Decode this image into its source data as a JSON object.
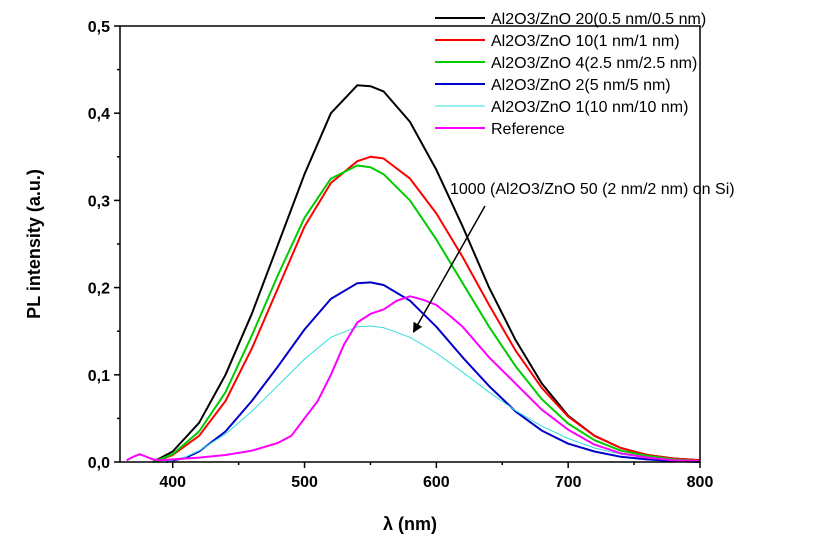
{
  "chart_data": {
    "type": "line",
    "xlabel": "λ (nm)",
    "ylabel": "PL intensity (a.u.)",
    "xlim": [
      360,
      800
    ],
    "ylim": [
      0,
      0.5
    ],
    "x_ticks": [
      400,
      500,
      600,
      700,
      800
    ],
    "x_tick_labels": [
      "400",
      "500",
      "600",
      "700",
      "800"
    ],
    "y_ticks": [
      0,
      0.1,
      0.2,
      0.3,
      0.4,
      0.5
    ],
    "y_tick_labels": [
      "0,0",
      "0,1",
      "0,2",
      "0,3",
      "0,4",
      "0,5"
    ],
    "grid": false,
    "legend_position": "top-right",
    "annotation": {
      "text": "1000 (Al2O3/ZnO 50 (2 nm/2 nm) on Si)",
      "points_to_x": 583,
      "points_to_y": 0.15
    },
    "series": [
      {
        "name": "Al2O3/ZnO 20(0.5 nm/0.5 nm)",
        "color": "#000000",
        "x": [
          385,
          400,
          420,
          440,
          460,
          480,
          500,
          520,
          540,
          550,
          560,
          580,
          600,
          620,
          640,
          660,
          680,
          700,
          720,
          740,
          760,
          780,
          800
        ],
        "y": [
          0.0,
          0.012,
          0.045,
          0.1,
          0.17,
          0.25,
          0.33,
          0.4,
          0.432,
          0.431,
          0.425,
          0.39,
          0.335,
          0.27,
          0.2,
          0.14,
          0.09,
          0.053,
          0.03,
          0.016,
          0.008,
          0.004,
          0.002
        ]
      },
      {
        "name": "Al2O3/ZnO 10(1 nm/1 nm)",
        "color": "#ff0000",
        "x": [
          385,
          400,
          420,
          440,
          460,
          480,
          500,
          520,
          540,
          550,
          560,
          580,
          600,
          620,
          640,
          660,
          680,
          700,
          720,
          740,
          760,
          780,
          800
        ],
        "y": [
          0.0,
          0.008,
          0.03,
          0.07,
          0.13,
          0.2,
          0.27,
          0.32,
          0.345,
          0.35,
          0.348,
          0.325,
          0.285,
          0.235,
          0.18,
          0.128,
          0.085,
          0.052,
          0.03,
          0.016,
          0.008,
          0.004,
          0.002
        ]
      },
      {
        "name": "Al2O3/ZnO 4(2.5 nm/2.5 nm)",
        "color": "#00cc00",
        "x": [
          385,
          400,
          420,
          440,
          460,
          480,
          500,
          520,
          540,
          550,
          560,
          580,
          600,
          620,
          640,
          660,
          680,
          700,
          720,
          740,
          760,
          780,
          800
        ],
        "y": [
          0.0,
          0.009,
          0.035,
          0.08,
          0.145,
          0.215,
          0.28,
          0.325,
          0.34,
          0.338,
          0.33,
          0.3,
          0.255,
          0.205,
          0.155,
          0.11,
          0.072,
          0.044,
          0.025,
          0.013,
          0.007,
          0.003,
          0.001
        ]
      },
      {
        "name": "Al2O3/ZnO 2(5 nm/5 nm)",
        "color": "#0000cc",
        "x": [
          395,
          410,
          420,
          440,
          460,
          480,
          500,
          520,
          540,
          550,
          560,
          580,
          600,
          620,
          640,
          660,
          680,
          700,
          720,
          740,
          760,
          780,
          800
        ],
        "y": [
          0.0,
          0.005,
          0.012,
          0.035,
          0.07,
          0.11,
          0.152,
          0.187,
          0.205,
          0.206,
          0.203,
          0.185,
          0.155,
          0.12,
          0.087,
          0.058,
          0.036,
          0.021,
          0.012,
          0.006,
          0.003,
          0.001,
          0.0
        ]
      },
      {
        "name": "Al2O3/ZnO 1(10 nm/10 nm)",
        "color": "#33dddd",
        "x": [
          395,
          410,
          420,
          440,
          460,
          480,
          500,
          520,
          540,
          550,
          560,
          580,
          600,
          620,
          640,
          660,
          680,
          700,
          720,
          740,
          760,
          780,
          800
        ],
        "y": [
          0.0,
          0.006,
          0.013,
          0.032,
          0.058,
          0.088,
          0.118,
          0.143,
          0.155,
          0.156,
          0.154,
          0.143,
          0.125,
          0.103,
          0.08,
          0.059,
          0.041,
          0.027,
          0.016,
          0.009,
          0.005,
          0.002,
          0.001
        ]
      },
      {
        "name": "Reference",
        "color": "#ff00ff",
        "x": [
          365,
          370,
          375,
          380,
          385,
          390,
          400,
          420,
          440,
          460,
          480,
          490,
          500,
          510,
          520,
          530,
          540,
          550,
          560,
          570,
          580,
          590,
          600,
          610,
          620,
          640,
          660,
          680,
          700,
          720,
          740,
          760,
          780,
          800
        ],
        "y": [
          0.002,
          0.006,
          0.009,
          0.006,
          0.003,
          0.002,
          0.003,
          0.005,
          0.008,
          0.013,
          0.022,
          0.03,
          0.05,
          0.07,
          0.1,
          0.135,
          0.16,
          0.17,
          0.175,
          0.185,
          0.19,
          0.186,
          0.18,
          0.168,
          0.155,
          0.12,
          0.09,
          0.06,
          0.037,
          0.02,
          0.01,
          0.005,
          0.002,
          0.001
        ]
      }
    ]
  }
}
